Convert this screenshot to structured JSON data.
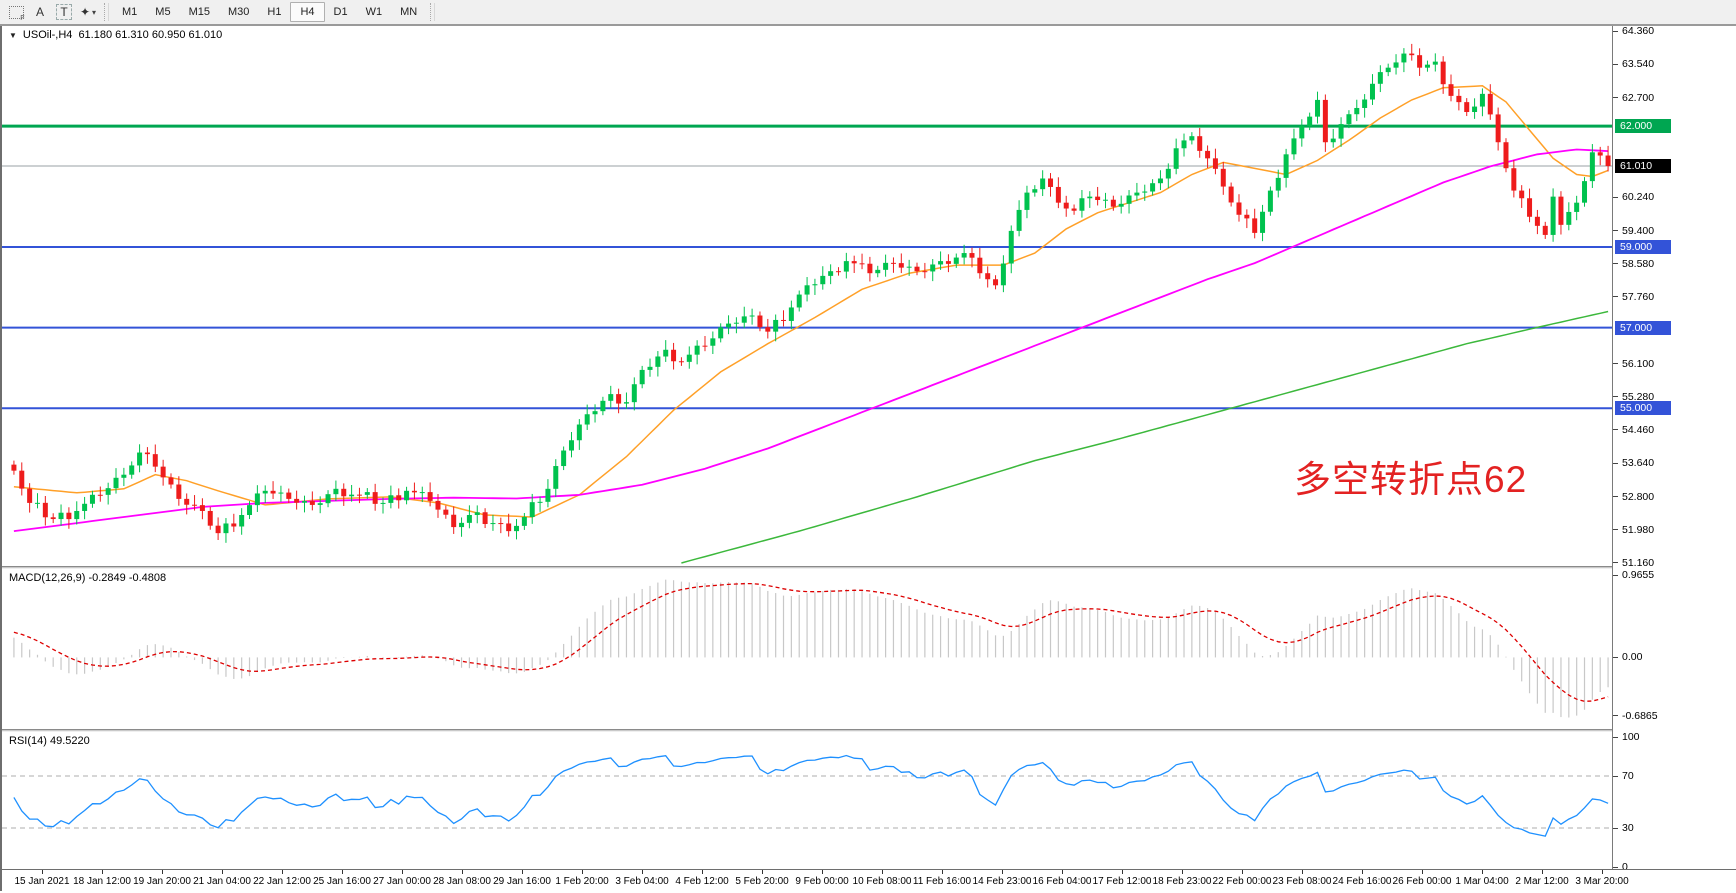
{
  "toolbar": {
    "grid_tool": "F",
    "label_tool": "A",
    "text_tool": "T",
    "draw_tool_caret": "▾",
    "draw_tool_glyph": "✦",
    "timeframes": [
      {
        "label": "M1",
        "selected": false
      },
      {
        "label": "M5",
        "selected": false
      },
      {
        "label": "M15",
        "selected": false
      },
      {
        "label": "M30",
        "selected": false
      },
      {
        "label": "H1",
        "selected": false
      },
      {
        "label": "H4",
        "selected": true
      },
      {
        "label": "D1",
        "selected": false
      },
      {
        "label": "W1",
        "selected": false
      },
      {
        "label": "MN",
        "selected": false
      }
    ]
  },
  "main_chart": {
    "title_symbol": "USOil-,H4",
    "title_quote": "61.180 61.310 60.950 61.010",
    "dropdown_glyph": "▼",
    "annotation": {
      "text": "多空转折点62",
      "color": "#e32222"
    }
  },
  "macd_panel": {
    "header": "MACD(12,26,9) -0.2849 -0.4808"
  },
  "rsi_panel": {
    "header": "RSI(14) 49.5220"
  },
  "chart_data": {
    "type": "candlestick",
    "symbol": "USOil",
    "timeframe": "H4",
    "num_candles": 204,
    "ylim": [
      51.16,
      64.36
    ],
    "x_labels": [
      "15 Jan 2021",
      "18 Jan 12:00",
      "19 Jan 20:00",
      "21 Jan 04:00",
      "22 Jan 12:00",
      "25 Jan 16:00",
      "27 Jan 00:00",
      "28 Jan 08:00",
      "29 Jan 16:00",
      "1 Feb 20:00",
      "3 Feb 04:00",
      "4 Feb 12:00",
      "5 Feb 20:00",
      "9 Feb 00:00",
      "10 Feb 08:00",
      "11 Feb 16:00",
      "14 Feb 23:00",
      "16 Feb 04:00",
      "17 Feb 12:00",
      "18 Feb 23:00",
      "22 Feb 00:00",
      "23 Feb 08:00",
      "24 Feb 16:00",
      "26 Feb 00:00",
      "1 Mar 04:00",
      "2 Mar 12:00",
      "3 Mar 20:00"
    ],
    "price_ticks": [
      {
        "label": "64.360",
        "value": 64.36
      },
      {
        "label": "63.540",
        "value": 63.54
      },
      {
        "label": "62.700",
        "value": 62.7
      },
      {
        "label": "60.240",
        "value": 60.24
      },
      {
        "label": "59.400",
        "value": 59.4
      },
      {
        "label": "58.580",
        "value": 58.58
      },
      {
        "label": "57.760",
        "value": 57.76
      },
      {
        "label": "56.100",
        "value": 56.1
      },
      {
        "label": "55.280",
        "value": 55.28
      },
      {
        "label": "54.460",
        "value": 54.46
      },
      {
        "label": "53.640",
        "value": 53.64
      },
      {
        "label": "52.800",
        "value": 52.8
      },
      {
        "label": "51.980",
        "value": 51.98
      },
      {
        "label": "51.160",
        "value": 51.16
      }
    ],
    "levels": [
      {
        "price": 62.0,
        "label": "62.000",
        "color": "#00A651",
        "line_width": 3
      },
      {
        "price": 59.0,
        "label": "59.000",
        "color": "#3353D8",
        "line_width": 2
      },
      {
        "price": 57.0,
        "label": "57.000",
        "color": "#3353D8",
        "line_width": 2
      },
      {
        "price": 55.0,
        "label": "55.000",
        "color": "#3353D8",
        "line_width": 2
      }
    ],
    "current_price": {
      "price": 61.01,
      "label": "61.010",
      "line_color": "#9aa0a6",
      "label_bg": "#000000"
    },
    "close_anchors": [
      [
        0,
        53.45
      ],
      [
        2,
        52.65
      ],
      [
        5,
        52.25
      ],
      [
        8,
        52.45
      ],
      [
        11,
        52.85
      ],
      [
        14,
        53.35
      ],
      [
        16,
        53.9
      ],
      [
        18,
        53.55
      ],
      [
        21,
        52.75
      ],
      [
        24,
        52.45
      ],
      [
        26,
        51.9
      ],
      [
        29,
        52.35
      ],
      [
        32,
        52.95
      ],
      [
        35,
        52.75
      ],
      [
        38,
        52.6
      ],
      [
        41,
        53.0
      ],
      [
        44,
        52.85
      ],
      [
        47,
        52.65
      ],
      [
        50,
        52.95
      ],
      [
        53,
        52.7
      ],
      [
        56,
        52.05
      ],
      [
        58,
        52.35
      ],
      [
        61,
        52.15
      ],
      [
        63,
        51.95
      ],
      [
        65,
        52.3
      ],
      [
        68,
        53.0
      ],
      [
        70,
        53.95
      ],
      [
        73,
        54.85
      ],
      [
        76,
        55.35
      ],
      [
        78,
        55.15
      ],
      [
        80,
        55.95
      ],
      [
        83,
        56.45
      ],
      [
        85,
        56.15
      ],
      [
        88,
        56.55
      ],
      [
        91,
        57.1
      ],
      [
        94,
        57.3
      ],
      [
        96,
        56.9
      ],
      [
        99,
        57.5
      ],
      [
        101,
        58.05
      ],
      [
        104,
        58.4
      ],
      [
        106,
        58.65
      ],
      [
        109,
        58.35
      ],
      [
        112,
        58.6
      ],
      [
        115,
        58.4
      ],
      [
        118,
        58.65
      ],
      [
        121,
        58.85
      ],
      [
        123,
        58.35
      ],
      [
        125,
        58.05
      ],
      [
        127,
        59.4
      ],
      [
        129,
        60.35
      ],
      [
        131,
        60.7
      ],
      [
        133,
        60.1
      ],
      [
        135,
        59.9
      ],
      [
        137,
        60.25
      ],
      [
        140,
        60.0
      ],
      [
        143,
        60.35
      ],
      [
        146,
        60.7
      ],
      [
        148,
        61.45
      ],
      [
        150,
        61.75
      ],
      [
        152,
        61.2
      ],
      [
        154,
        60.5
      ],
      [
        156,
        59.8
      ],
      [
        158,
        59.35
      ],
      [
        160,
        60.4
      ],
      [
        162,
        61.3
      ],
      [
        164,
        62.0
      ],
      [
        166,
        62.65
      ],
      [
        167,
        61.6
      ],
      [
        169,
        62.05
      ],
      [
        171,
        62.45
      ],
      [
        173,
        63.05
      ],
      [
        175,
        63.45
      ],
      [
        177,
        63.8
      ],
      [
        179,
        63.45
      ],
      [
        181,
        63.6
      ],
      [
        183,
        62.75
      ],
      [
        185,
        62.35
      ],
      [
        187,
        62.8
      ],
      [
        189,
        61.6
      ],
      [
        191,
        60.4
      ],
      [
        193,
        59.75
      ],
      [
        195,
        59.3
      ],
      [
        196,
        60.25
      ],
      [
        197,
        59.55
      ],
      [
        199,
        60.1
      ],
      [
        201,
        61.35
      ],
      [
        203,
        61.01
      ]
    ],
    "candle_colors": {
      "up": "#00C24E",
      "down": "#EE1C1C"
    },
    "moving_averages": [
      {
        "name": "ma-fast",
        "color": "#FFA028",
        "width": 1.5,
        "points": [
          [
            0,
            53.05
          ],
          [
            8,
            52.9
          ],
          [
            14,
            53.0
          ],
          [
            18,
            53.35
          ],
          [
            22,
            53.2
          ],
          [
            26,
            52.95
          ],
          [
            32,
            52.6
          ],
          [
            40,
            52.75
          ],
          [
            48,
            52.8
          ],
          [
            54,
            52.65
          ],
          [
            60,
            52.35
          ],
          [
            66,
            52.3
          ],
          [
            72,
            52.85
          ],
          [
            78,
            53.8
          ],
          [
            84,
            54.95
          ],
          [
            90,
            55.9
          ],
          [
            96,
            56.6
          ],
          [
            102,
            57.25
          ],
          [
            108,
            57.95
          ],
          [
            114,
            58.35
          ],
          [
            120,
            58.55
          ],
          [
            126,
            58.55
          ],
          [
            130,
            58.85
          ],
          [
            134,
            59.45
          ],
          [
            138,
            59.85
          ],
          [
            142,
            60.1
          ],
          [
            146,
            60.35
          ],
          [
            150,
            60.8
          ],
          [
            154,
            61.1
          ],
          [
            158,
            60.95
          ],
          [
            162,
            60.8
          ],
          [
            166,
            61.15
          ],
          [
            170,
            61.65
          ],
          [
            174,
            62.2
          ],
          [
            178,
            62.65
          ],
          [
            182,
            62.95
          ],
          [
            187,
            63.0
          ],
          [
            190,
            62.6
          ],
          [
            193,
            61.9
          ],
          [
            196,
            61.2
          ],
          [
            199,
            60.8
          ],
          [
            201,
            60.75
          ],
          [
            203,
            60.9
          ]
        ]
      },
      {
        "name": "ma-mid",
        "color": "#FF00FF",
        "width": 1.8,
        "points": [
          [
            0,
            51.95
          ],
          [
            8,
            52.15
          ],
          [
            16,
            52.35
          ],
          [
            24,
            52.55
          ],
          [
            32,
            52.65
          ],
          [
            40,
            52.7
          ],
          [
            48,
            52.75
          ],
          [
            56,
            52.78
          ],
          [
            64,
            52.76
          ],
          [
            72,
            52.85
          ],
          [
            80,
            53.1
          ],
          [
            88,
            53.5
          ],
          [
            96,
            54.0
          ],
          [
            104,
            54.6
          ],
          [
            112,
            55.2
          ],
          [
            120,
            55.8
          ],
          [
            128,
            56.4
          ],
          [
            136,
            57.0
          ],
          [
            144,
            57.6
          ],
          [
            152,
            58.2
          ],
          [
            158,
            58.6
          ],
          [
            164,
            59.1
          ],
          [
            170,
            59.6
          ],
          [
            176,
            60.1
          ],
          [
            182,
            60.6
          ],
          [
            188,
            61.0
          ],
          [
            194,
            61.3
          ],
          [
            199,
            61.42
          ],
          [
            203,
            61.38
          ]
        ]
      },
      {
        "name": "ma-slow",
        "color": "#3CB83C",
        "width": 1.5,
        "points": [
          [
            85,
            51.16
          ],
          [
            100,
            51.95
          ],
          [
            115,
            52.8
          ],
          [
            130,
            53.7
          ],
          [
            140,
            54.2
          ],
          [
            155,
            55.0
          ],
          [
            170,
            55.8
          ],
          [
            185,
            56.6
          ],
          [
            195,
            57.05
          ],
          [
            203,
            57.4
          ]
        ]
      }
    ],
    "macd": {
      "params": "12,26,9",
      "main_value": -0.2849,
      "signal_value": -0.4808,
      "scale": [
        {
          "label": "0.9655",
          "value": 0.9655
        },
        {
          "label": "0.00",
          "value": 0
        },
        {
          "label": "-0.6865",
          "value": -0.6865
        }
      ],
      "histogram_color": "#C8C8C8",
      "signal_color": "#DD0000"
    },
    "rsi": {
      "period": 14,
      "value": 49.522,
      "scale": [
        {
          "label": "100",
          "value": 100
        },
        {
          "label": "70",
          "value": 70
        },
        {
          "label": "30",
          "value": 30
        },
        {
          "label": "0",
          "value": 0
        }
      ],
      "guides": [
        70,
        30
      ],
      "line_color": "#1E90FF",
      "guide_color": "#ADADAD"
    }
  }
}
